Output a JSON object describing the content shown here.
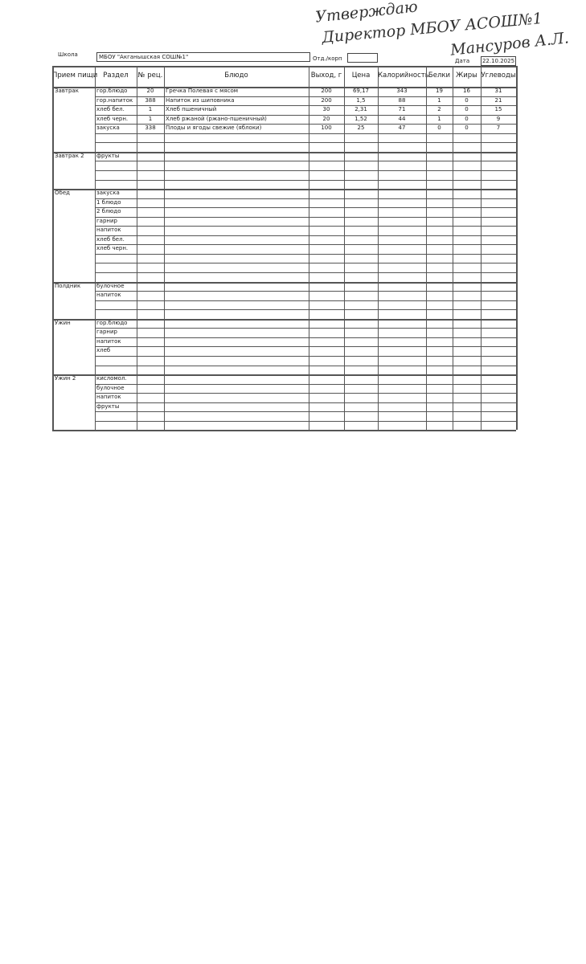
{
  "approval": {
    "line1": "Утверждаю",
    "line2": "Директор МБОУ АСОШ№1",
    "line3": "Мансуров А.Л."
  },
  "header": {
    "school_label": "Школа",
    "school": "МБОУ \"Акганышская СОШ№1\"",
    "dept_label": "Отд./корп",
    "date_label": "Дата",
    "date": "22.10.2025"
  },
  "table": {
    "columns": [
      "Прием пищи",
      "Раздел",
      "№ рец.",
      "Блюдо",
      "Выход, г",
      "Цена",
      "Калорийность",
      "Белки",
      "Жиры",
      "Углеводы"
    ],
    "groups": [
      {
        "meal": "Завтрак",
        "rows": [
          [
            "гор.блюдо",
            "20",
            "Гречка Полевая с мясом",
            "200",
            "69,17",
            "343",
            "19",
            "16",
            "31"
          ],
          [
            "гор.напиток",
            "388",
            "Напиток из шиповника",
            "200",
            "1,5",
            "88",
            "1",
            "0",
            "21"
          ],
          [
            "хлеб бел.",
            "1",
            "Хлеб пшеничный",
            "30",
            "2,31",
            "71",
            "2",
            "0",
            "15"
          ],
          [
            "хлеб черн.",
            "1",
            "Хлеб ржаной (ржано-пшеничный)",
            "20",
            "1,52",
            "44",
            "1",
            "0",
            "9"
          ],
          [
            "закуска",
            "338",
            "Плоды и ягоды свежие (яблоки)",
            "100",
            "25",
            "47",
            "0",
            "0",
            "7"
          ]
        ]
      },
      {
        "meal": "Завтрак 2",
        "rows": [
          [
            "фрукты"
          ]
        ]
      },
      {
        "meal": "Обед",
        "rows": [
          [
            "закуска"
          ],
          [
            "1 блюдо"
          ],
          [
            "2 блюдо"
          ],
          [
            "гарнир"
          ],
          [
            "напиток"
          ],
          [
            "хлеб бел."
          ],
          [
            "хлеб черн."
          ]
        ]
      },
      {
        "meal": "Полдник",
        "rows": [
          [
            "булочное"
          ],
          [
            "напиток"
          ]
        ]
      },
      {
        "meal": "Ужин",
        "rows": [
          [
            "гор.блюдо"
          ],
          [
            "гарнир"
          ],
          [
            "напиток"
          ],
          [
            "хлеб"
          ]
        ]
      },
      {
        "meal": "Ужин 2",
        "rows": [
          [
            "кисломол."
          ],
          [
            "булочное"
          ],
          [
            "напиток"
          ],
          [
            "фрукты"
          ]
        ]
      }
    ]
  }
}
